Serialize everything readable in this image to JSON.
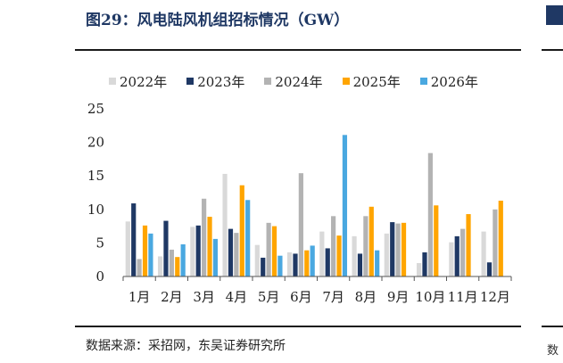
{
  "title": "图29：风电陆风机组招标情况（GW）",
  "source": "数据来源：采招网，东吴证券研究所",
  "chart_data": {
    "type": "bar",
    "title": "图29：风电陆风机组招标情况（GW）",
    "xlabel": "",
    "ylabel": "",
    "ylim": [
      0,
      25
    ],
    "yticks": [
      0,
      5,
      10,
      15,
      20,
      25
    ],
    "grid": false,
    "legend_position": "top",
    "categories": [
      "1月",
      "2月",
      "3月",
      "4月",
      "5月",
      "6月",
      "7月",
      "8月",
      "9月",
      "10月",
      "11月",
      "12月"
    ],
    "series": [
      {
        "name": "2022年",
        "color": "#d9d9d9",
        "values": [
          8.2,
          3.0,
          7.4,
          15.3,
          4.7,
          3.6,
          6.7,
          6.0,
          6.4,
          2.0,
          5.1,
          6.7
        ]
      },
      {
        "name": "2023年",
        "color": "#1f3864",
        "values": [
          10.9,
          8.3,
          7.6,
          7.1,
          2.8,
          3.4,
          4.2,
          3.4,
          8.1,
          3.6,
          6.0,
          2.1
        ]
      },
      {
        "name": "2024年",
        "color": "#b3b3b3",
        "values": [
          2.6,
          4.0,
          11.6,
          6.5,
          8.0,
          15.4,
          9.0,
          9.0,
          7.9,
          18.4,
          7.1,
          10.0
        ]
      },
      {
        "name": "2025年",
        "color": "#ffa500",
        "values": [
          7.6,
          2.9,
          8.9,
          13.6,
          7.5,
          3.9,
          6.1,
          10.4,
          8.0,
          10.6,
          9.3,
          11.3
        ]
      },
      {
        "name": "2026年",
        "color": "#4aa8e0",
        "values": [
          6.4,
          4.8,
          5.6,
          11.4,
          3.1,
          4.6,
          21.1,
          3.9,
          null,
          null,
          null,
          null
        ]
      }
    ]
  }
}
